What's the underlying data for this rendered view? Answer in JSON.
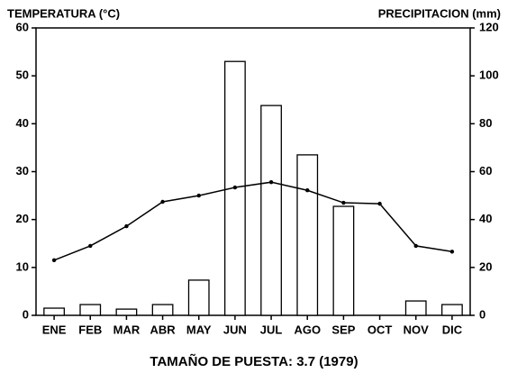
{
  "chart_data": {
    "type": "bar_line",
    "y_label": "TEMPERATURA (°C)",
    "y2_label": "PRECIPITACION (mm)",
    "caption": "TAMAÑO DE PUESTA: 3.7  (1979)",
    "categories": [
      "ENE",
      "FEB",
      "MAR",
      "ABR",
      "MAY",
      "JUN",
      "JUL",
      "AGO",
      "SEP",
      "OCT",
      "NOV",
      "DIC"
    ],
    "series": [
      {
        "name": "PRECIPITACION (mm)",
        "type": "bar",
        "axis": "y2",
        "color": "#000000",
        "values": [
          3,
          4.5,
          2.6,
          4.5,
          14.7,
          106,
          87.6,
          67,
          45.5,
          0,
          6,
          4.5
        ]
      },
      {
        "name": "TEMPERATURA (°C)",
        "type": "line",
        "axis": "y",
        "color": "#000000",
        "values": [
          11.5,
          14.5,
          18.6,
          23.7,
          25,
          26.7,
          27.8,
          26.1,
          23.5,
          23.3,
          14.5,
          13.3
        ]
      }
    ],
    "ylim": [
      0,
      60
    ],
    "yticks": [
      0,
      10,
      20,
      30,
      40,
      50,
      60
    ],
    "y2lim": [
      0,
      120
    ],
    "y2ticks": [
      0,
      20,
      40,
      60,
      80,
      100,
      120
    ],
    "grid": false
  }
}
